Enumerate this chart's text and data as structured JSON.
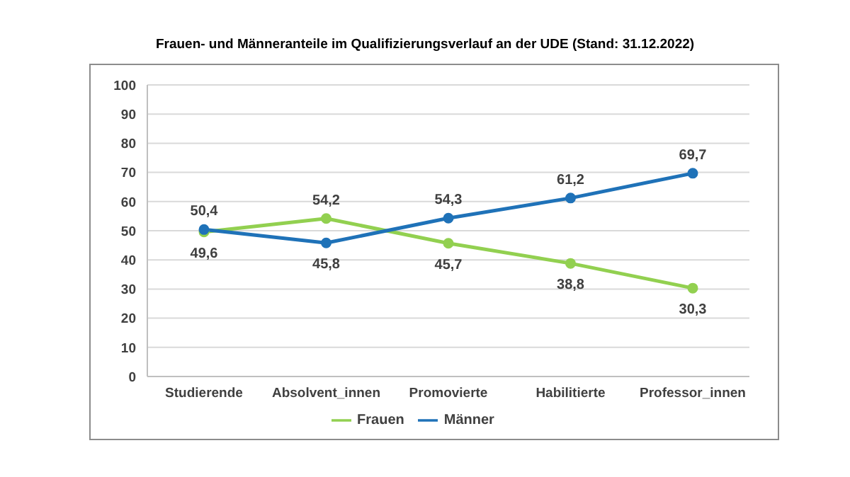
{
  "chart_data": {
    "type": "line",
    "title": "Frauen- und Männeranteile im Qualifizierungsverlauf an der UDE (Stand: 31.12.2022)",
    "categories": [
      "Studierende",
      "Absolvent_innen",
      "Promovierte",
      "Habilitierte",
      "Professor_innen"
    ],
    "series": [
      {
        "name": "Frauen",
        "color": "#92d050",
        "values": [
          49.6,
          54.2,
          45.7,
          38.8,
          30.3
        ],
        "value_labels": [
          "49,6",
          "54,2",
          "45,7",
          "38,8",
          "30,3"
        ]
      },
      {
        "name": "Männer",
        "color": "#1f72b8",
        "values": [
          50.4,
          45.8,
          54.3,
          61.2,
          69.7
        ],
        "value_labels": [
          "50,4",
          "45,8",
          "54,3",
          "61,2",
          "69,7"
        ]
      }
    ],
    "ylim": [
      0,
      100
    ],
    "yticks": [
      0,
      10,
      20,
      30,
      40,
      50,
      60,
      70,
      80,
      90,
      100
    ],
    "grid": "y",
    "legend": "bottom",
    "marker": "circle",
    "line_style": "solid"
  }
}
